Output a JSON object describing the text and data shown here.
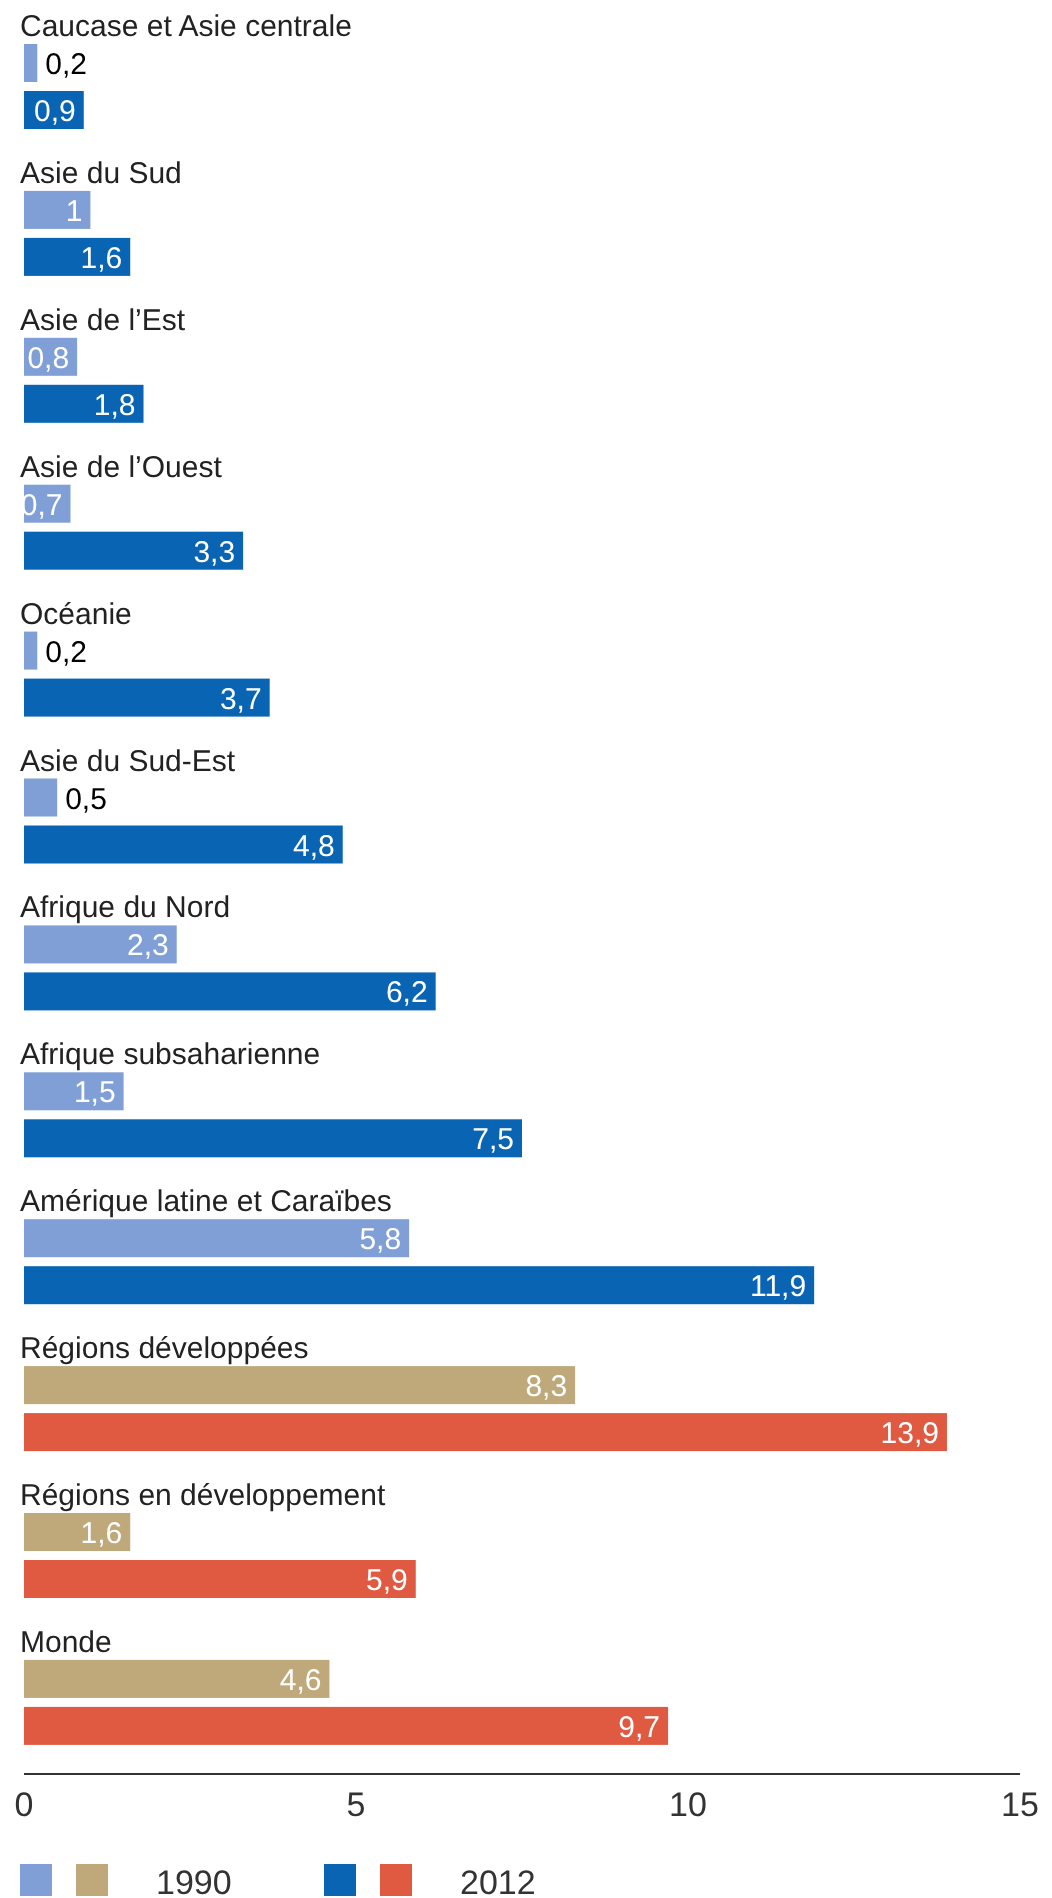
{
  "chart_data": {
    "type": "bar",
    "orientation": "horizontal",
    "categories": [
      "Caucase et Asie centrale",
      "Asie du Sud",
      "Asie de l’Est",
      "Asie de l’Ouest",
      "Océanie",
      "Asie du Sud-Est",
      "Afrique du Nord",
      "Afrique subsaharienne",
      "Amérique latine et Caraïbes",
      "Régions développées",
      "Régions en développement",
      "Monde"
    ],
    "series": [
      {
        "name": "1990",
        "colors": [
          "#7f9fd6",
          "#7f9fd6",
          "#7f9fd6",
          "#7f9fd6",
          "#7f9fd6",
          "#7f9fd6",
          "#7f9fd6",
          "#7f9fd6",
          "#7f9fd6",
          "#bfa97b",
          "#bfa97b",
          "#bfa97b"
        ],
        "values": [
          0.2,
          1,
          0.8,
          0.7,
          0.2,
          0.5,
          2.3,
          1.5,
          5.8,
          8.3,
          1.6,
          4.6
        ],
        "value_labels": [
          "0,2",
          "1",
          "0,8",
          "0,7",
          "0,2",
          "0,5",
          "2,3",
          "1,5",
          "5,8",
          "8,3",
          "1,6",
          "4,6"
        ]
      },
      {
        "name": "2012",
        "colors": [
          "#0a64b4",
          "#0a64b4",
          "#0a64b4",
          "#0a64b4",
          "#0a64b4",
          "#0a64b4",
          "#0a64b4",
          "#0a64b4",
          "#0a64b4",
          "#e05a41",
          "#e05a41",
          "#e05a41"
        ],
        "values": [
          0.9,
          1.6,
          1.8,
          3.3,
          3.7,
          4.8,
          6.2,
          7.5,
          11.9,
          13.9,
          5.9,
          9.7
        ],
        "value_labels": [
          "0,9",
          "1,6",
          "1,8",
          "3,3",
          "3,7",
          "4,8",
          "6,2",
          "7,5",
          "11,9",
          "13,9",
          "5,9",
          "9,7"
        ]
      }
    ],
    "xlim": [
      0,
      15
    ],
    "xticks": [
      0,
      5,
      10,
      15
    ],
    "grid": false,
    "legend": "bottom left"
  }
}
